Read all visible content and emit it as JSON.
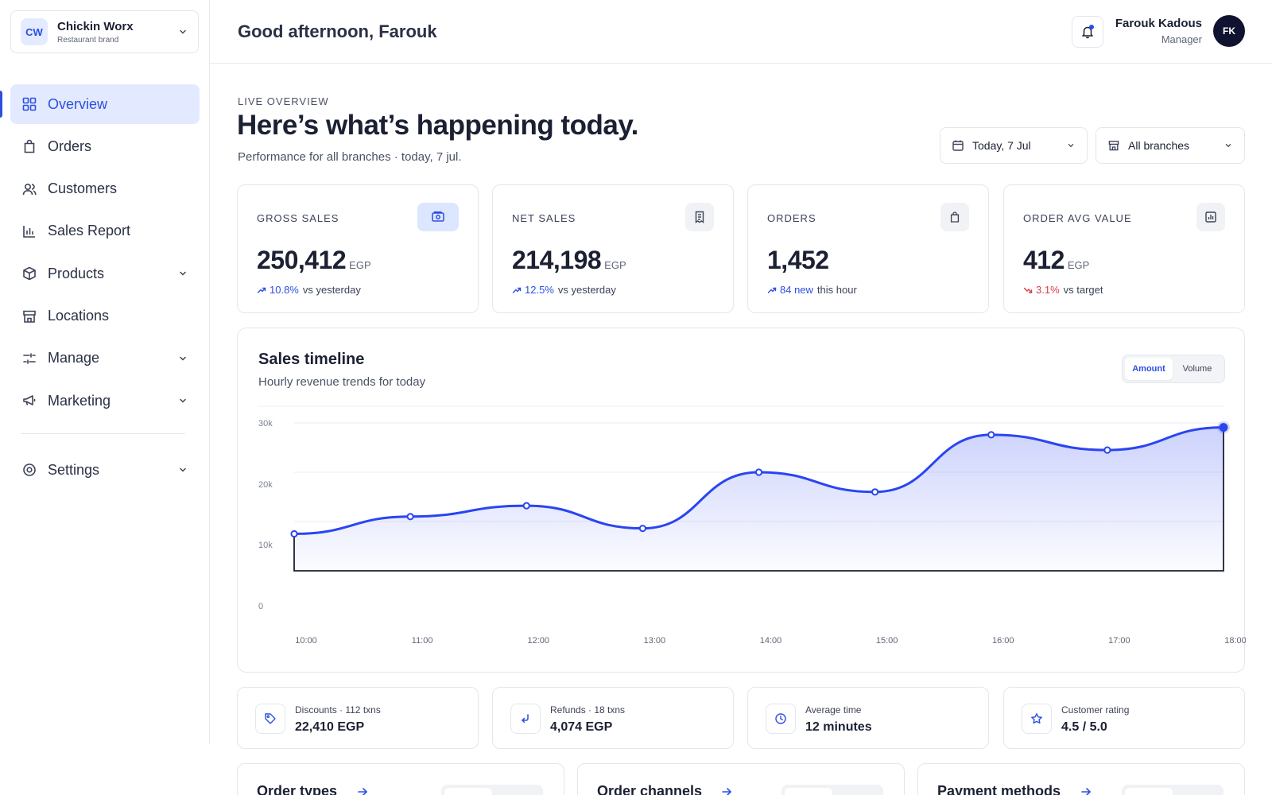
{
  "brand": {
    "logo": "CW",
    "name": "Chickin Worx",
    "subtitle": "Restaurant brand"
  },
  "nav": {
    "items": [
      {
        "label": "Overview",
        "icon": "grid-icon",
        "active": true
      },
      {
        "label": "Orders",
        "icon": "bag-icon"
      },
      {
        "label": "Customers",
        "icon": "users-icon"
      },
      {
        "label": "Sales Report",
        "icon": "bar-chart-icon"
      },
      {
        "label": "Products",
        "icon": "box-icon",
        "expandable": true
      },
      {
        "label": "Locations",
        "icon": "store-icon"
      },
      {
        "label": "Manage",
        "icon": "sliders-icon",
        "expandable": true
      },
      {
        "label": "Marketing",
        "icon": "megaphone-icon",
        "expandable": true
      }
    ],
    "settings": {
      "label": "Settings",
      "icon": "gear-icon",
      "expandable": true
    }
  },
  "topbar": {
    "greeting": "Good afternoon, Farouk",
    "user": {
      "name": "Farouk Kadous",
      "role": "Manager",
      "initials": "FK"
    }
  },
  "header": {
    "eyebrow": "LIVE OVERVIEW",
    "title": "Here’s what’s happening today.",
    "subtitle": "Performance for all branches · today, 7 jul.",
    "date_filter": "Today, 7 Jul",
    "branch_filter": "All branches"
  },
  "kpis": [
    {
      "label": "GROSS SALES",
      "value": "250,412",
      "unit": "EGP",
      "delta": "10.8%",
      "note": "vs yesterday",
      "trend": "up",
      "icon": "cash-icon"
    },
    {
      "label": "NET SALES",
      "value": "214,198",
      "unit": "EGP",
      "delta": "12.5%",
      "note": "vs yesterday",
      "trend": "up",
      "icon": "receipt-icon"
    },
    {
      "label": "ORDERS",
      "value": "1,452",
      "unit": "",
      "delta": "84 new",
      "note": "this hour",
      "trend": "up",
      "icon": "bag-icon"
    },
    {
      "label": "ORDER AVG VALUE",
      "value": "412",
      "unit": "EGP",
      "delta": "3.1%",
      "note": "vs target",
      "trend": "down",
      "icon": "report-icon"
    }
  ],
  "sales_timeline": {
    "title": "Sales timeline",
    "subtitle": "Hourly revenue trends for today",
    "toggle": {
      "active": "Amount",
      "inactive": "Volume"
    }
  },
  "chart_data": {
    "type": "area",
    "x": [
      "10:00",
      "11:00",
      "12:00",
      "13:00",
      "14:00",
      "15:00",
      "16:00",
      "17:00",
      "18:00"
    ],
    "series": [
      {
        "values": [
          7500,
          11000,
          13200,
          8600,
          20000,
          16000,
          27600,
          24500,
          29100
        ]
      }
    ],
    "yticks": [
      "30k",
      "20k",
      "10k",
      "0"
    ],
    "ylim": [
      0,
      30000
    ],
    "grid": true,
    "color": "#2a45f0"
  },
  "stats": [
    {
      "label": "Discounts · 112 txns",
      "value": "22,410 EGP",
      "icon": "tag-icon"
    },
    {
      "label": "Refunds · 18 txns",
      "value": "4,074 EGP",
      "icon": "return-icon"
    },
    {
      "label": "Average time",
      "value": "12 minutes",
      "icon": "clock-icon"
    },
    {
      "label": "Customer rating",
      "value": "4.5 / 5.0",
      "icon": "star-icon"
    }
  ],
  "bottom_cards": [
    {
      "title": "Order types"
    },
    {
      "title": "Order channels"
    },
    {
      "title": "Payment methods"
    }
  ]
}
